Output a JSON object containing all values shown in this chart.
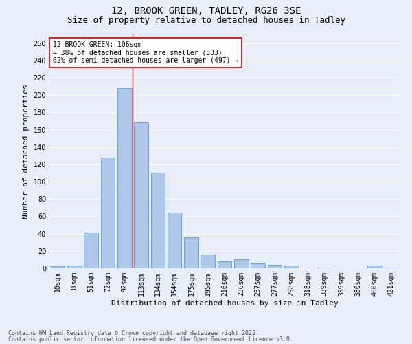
{
  "title1": "12, BROOK GREEN, TADLEY, RG26 3SE",
  "title2": "Size of property relative to detached houses in Tadley",
  "xlabel": "Distribution of detached houses by size in Tadley",
  "ylabel": "Number of detached properties",
  "categories": [
    "10sqm",
    "31sqm",
    "51sqm",
    "72sqm",
    "92sqm",
    "113sqm",
    "134sqm",
    "154sqm",
    "175sqm",
    "195sqm",
    "216sqm",
    "236sqm",
    "257sqm",
    "277sqm",
    "298sqm",
    "318sqm",
    "339sqm",
    "359sqm",
    "380sqm",
    "400sqm",
    "421sqm"
  ],
  "values": [
    2,
    3,
    41,
    128,
    208,
    168,
    110,
    64,
    36,
    16,
    8,
    10,
    6,
    4,
    3,
    0,
    1,
    0,
    0,
    3,
    1
  ],
  "bar_color": "#aec6e8",
  "bar_edge_color": "#5b9bd5",
  "bg_color": "#e8eef8",
  "grid_color": "#ffffff",
  "vline_x": 4.5,
  "vline_color": "#cc0000",
  "annotation_text": "12 BROOK GREEN: 106sqm\n← 38% of detached houses are smaller (303)\n62% of semi-detached houses are larger (497) →",
  "annotation_box_color": "#ffffff",
  "annotation_box_edge": "#cc0000",
  "ylim": [
    0,
    270
  ],
  "yticks": [
    0,
    20,
    40,
    60,
    80,
    100,
    120,
    140,
    160,
    180,
    200,
    220,
    240,
    260
  ],
  "footer1": "Contains HM Land Registry data © Crown copyright and database right 2025.",
  "footer2": "Contains public sector information licensed under the Open Government Licence v3.0.",
  "title_fontsize": 10,
  "subtitle_fontsize": 9,
  "axis_label_fontsize": 8,
  "tick_fontsize": 7,
  "annotation_fontsize": 7,
  "footer_fontsize": 6
}
